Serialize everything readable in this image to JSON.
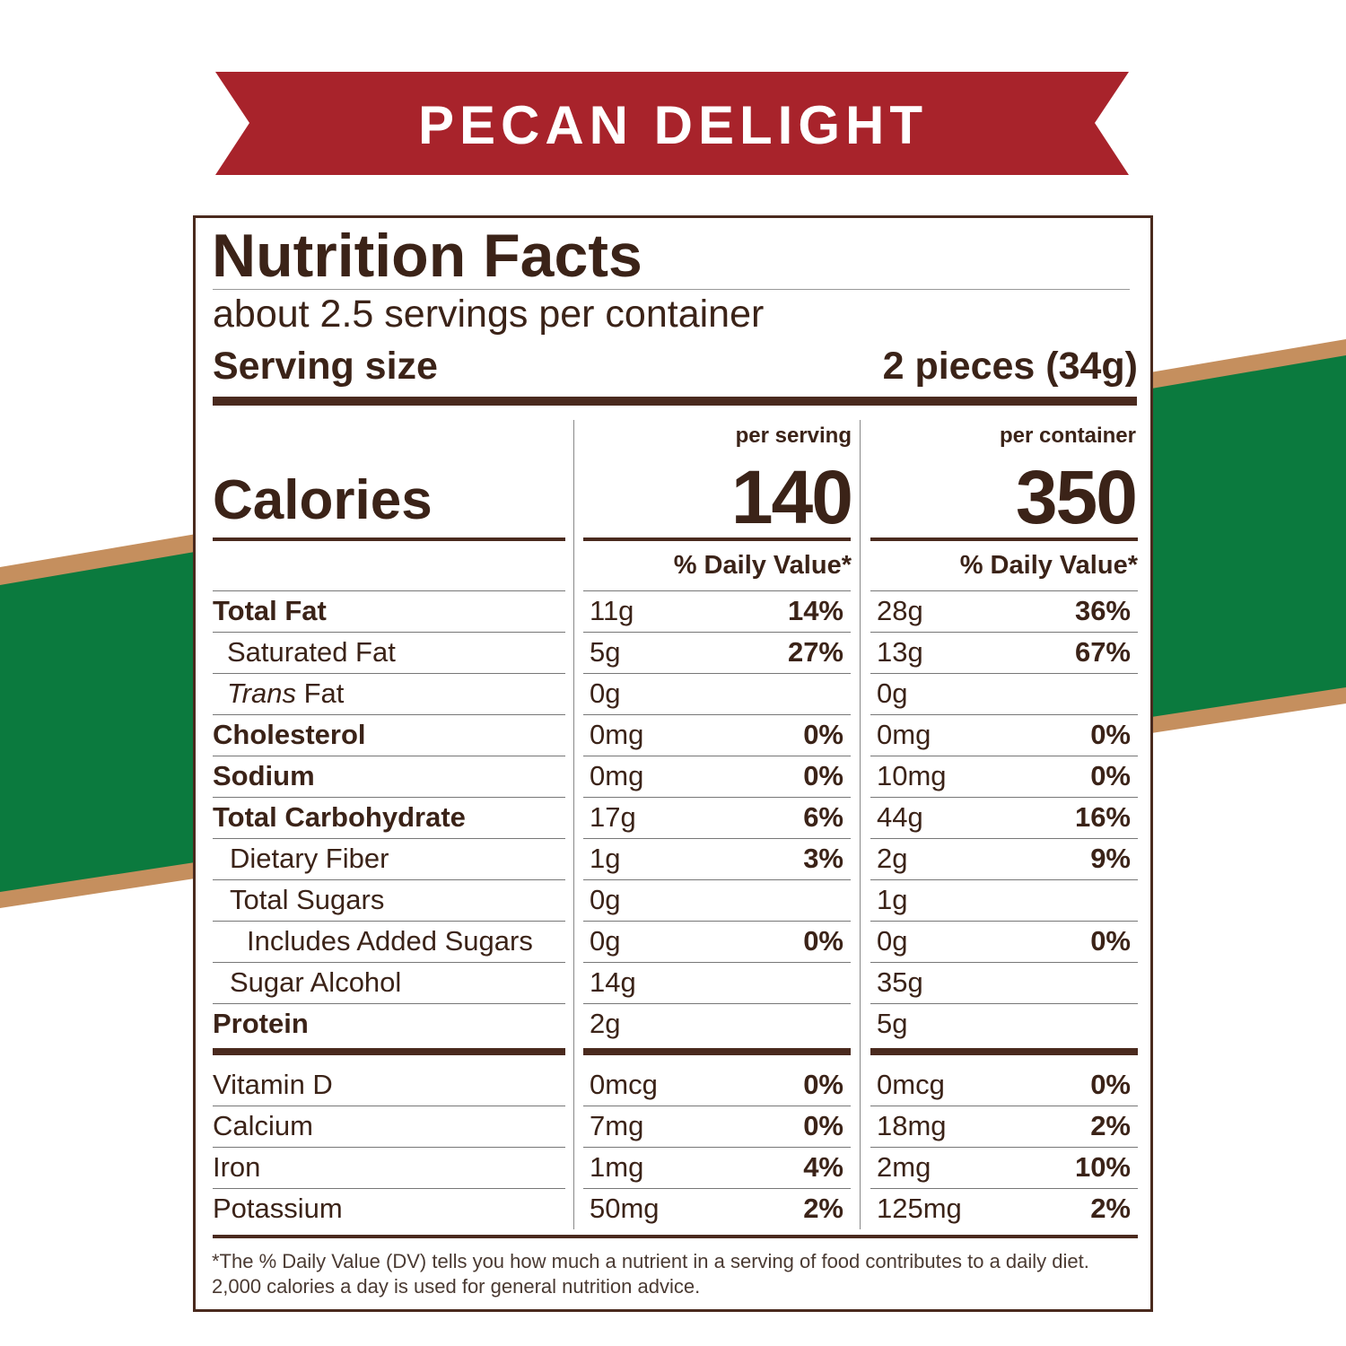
{
  "banner": "PECAN DELIGHT",
  "label": {
    "title": "Nutrition Facts",
    "servings": "about 2.5 servings per container",
    "serving_size_label": "Serving size",
    "serving_size": "2 pieces (34g)",
    "calories_label": "Calories",
    "per_serving_label": "per serving",
    "per_container_label": "per container",
    "calories_serving": 140,
    "calories_container": 350,
    "dv_header": "% Daily Value*",
    "rows": [
      {
        "name": "Total Fat",
        "serving": {
          "amount": "11g",
          "dv": "14%"
        },
        "container": {
          "amount": "28g",
          "dv": "36%"
        }
      },
      {
        "name": "Saturated Fat",
        "serving": {
          "amount": "5g",
          "dv": "27%"
        },
        "container": {
          "amount": "13g",
          "dv": "67%"
        }
      },
      {
        "name": [
          "Trans",
          "Fat"
        ],
        "serving": {
          "amount": "0g"
        },
        "container": {
          "amount": "0g"
        }
      },
      {
        "name": "Cholesterol",
        "serving": {
          "amount": "0mg",
          "dv": "0%"
        },
        "container": {
          "amount": "0mg",
          "dv": "0%"
        }
      },
      {
        "name": "Sodium",
        "serving": {
          "amount": "0mg",
          "dv": "0%"
        },
        "container": {
          "amount": "10mg",
          "dv": "0%"
        }
      },
      {
        "name": "Total Carbohydrate",
        "serving": {
          "amount": "17g",
          "dv": "6%"
        },
        "container": {
          "amount": "44g",
          "dv": "16%"
        }
      },
      {
        "name": "Dietary Fiber",
        "serving": {
          "amount": "1g",
          "dv": "3%"
        },
        "container": {
          "amount": "2g",
          "dv": "9%"
        }
      },
      {
        "name": "Total Sugars",
        "serving": {
          "amount": "0g"
        },
        "container": {
          "amount": "1g"
        }
      },
      {
        "name": "Includes Added Sugars",
        "serving": {
          "amount": "0g",
          "dv": "0%"
        },
        "container": {
          "amount": "0g",
          "dv": "0%"
        }
      },
      {
        "name": "Sugar Alcohol",
        "serving": {
          "amount": "14g"
        },
        "container": {
          "amount": "35g"
        }
      },
      {
        "name": "Protein",
        "serving": {
          "amount": "2g"
        },
        "container": {
          "amount": "5g"
        }
      }
    ],
    "vitamins": [
      {
        "name": "Vitamin D",
        "serving": {
          "amount": "0mcg",
          "dv": "0%"
        },
        "container": {
          "amount": "0mcg",
          "dv": "0%"
        }
      },
      {
        "name": "Calcium",
        "serving": {
          "amount": "7mg",
          "dv": "0%"
        },
        "container": {
          "amount": "18mg",
          "dv": "2%"
        }
      },
      {
        "name": "Iron",
        "serving": {
          "amount": "1mg",
          "dv": "4%"
        },
        "container": {
          "amount": "2mg",
          "dv": "10%"
        }
      },
      {
        "name": "Potassium",
        "serving": {
          "amount": "50mg",
          "dv": "2%"
        },
        "container": {
          "amount": "125mg",
          "dv": "2%"
        }
      }
    ],
    "footnote": "*The % Daily Value (DV) tells you how much a nutrient in a serving of food contributes to a daily diet. 2,000 calories a day is used for general nutrition advice."
  }
}
